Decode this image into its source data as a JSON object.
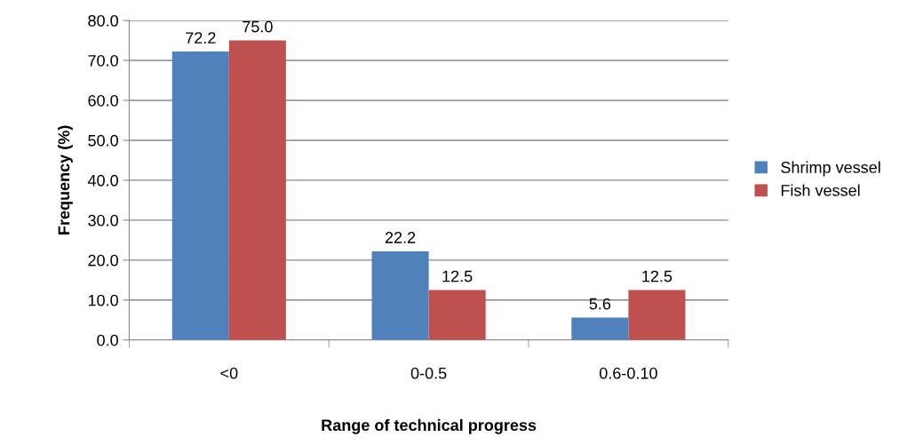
{
  "chart_data": {
    "type": "bar",
    "xlabel": "Range of technical progress",
    "ylabel": "Frequency (%)",
    "categories": [
      "<0",
      "0-0.5",
      "0.6-0.10"
    ],
    "series": [
      {
        "name": "Shrimp vessel",
        "color": "#4f81bd",
        "values": [
          72.2,
          22.2,
          5.6
        ],
        "value_labels": [
          "72.2",
          "22.2",
          "5.6"
        ]
      },
      {
        "name": "Fish vessel",
        "color": "#c0504d",
        "values": [
          75.0,
          12.5,
          12.5
        ],
        "value_labels": [
          "75.0",
          "12.5",
          "12.5"
        ]
      }
    ],
    "ylim": [
      0,
      80
    ],
    "yticks": [
      {
        "value": 0,
        "label": "0.0"
      },
      {
        "value": 10,
        "label": "10.0"
      },
      {
        "value": 20,
        "label": "20.0"
      },
      {
        "value": 30,
        "label": "30.0"
      },
      {
        "value": 40,
        "label": "40.0"
      },
      {
        "value": 50,
        "label": "50.0"
      },
      {
        "value": 60,
        "label": "60.0"
      },
      {
        "value": 70,
        "label": "70.0"
      },
      {
        "value": 80,
        "label": "80.0"
      }
    ],
    "grid": "y",
    "legend": "right"
  }
}
